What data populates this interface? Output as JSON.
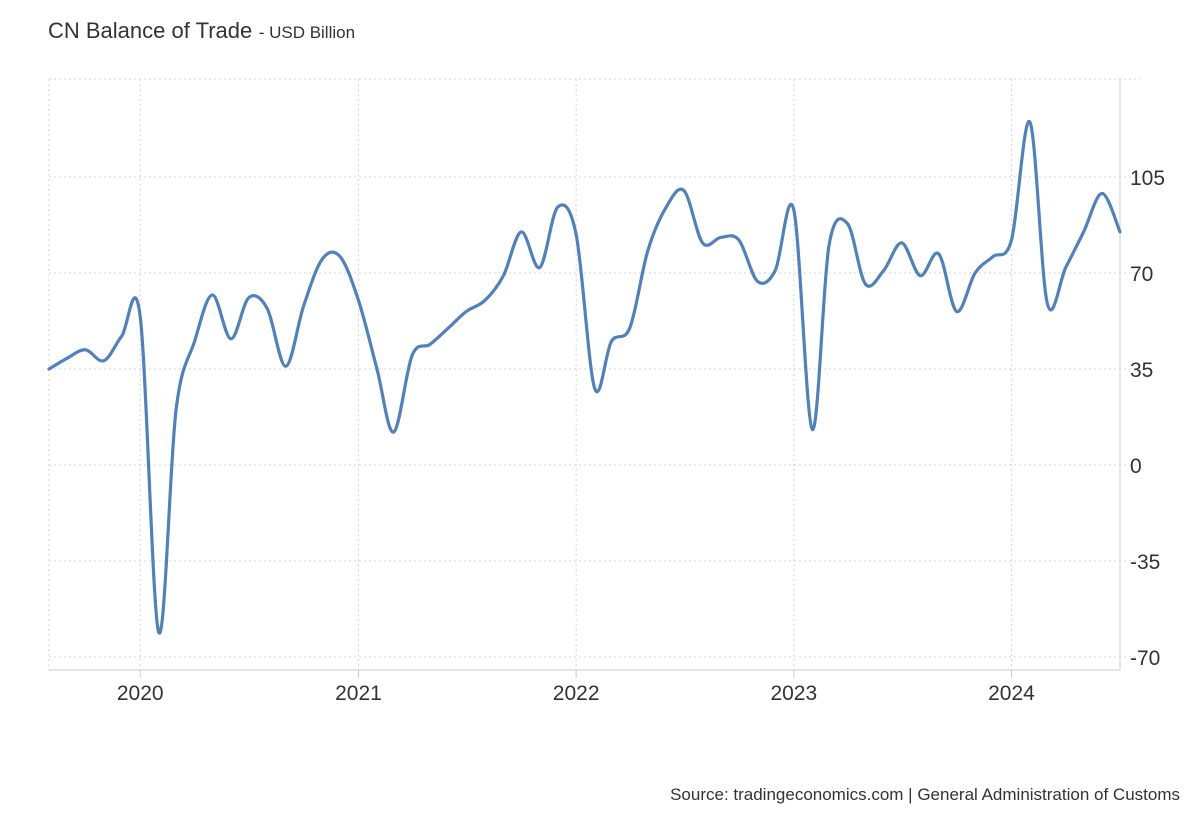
{
  "header": {
    "title": "CN Balance of Trade",
    "subtitle": "- USD Billion"
  },
  "footer": {
    "source": "Source: tradingeconomics.com | General Administration of Customs"
  },
  "colors": {
    "line": "#4f81bd",
    "grid": "#d6d6d6",
    "axis": "#cccccc",
    "text": "#333333"
  },
  "chart_data": {
    "type": "line",
    "title": "CN Balance of Trade",
    "subtitle": "USD Billion",
    "xlabel": "",
    "ylabel": "",
    "grid": true,
    "y_axis_side": "right",
    "xlim": [
      "2019-08-01",
      "2024-07-01"
    ],
    "ylim": [
      -75,
      140
    ],
    "yticks": [
      -70,
      -35,
      0,
      35,
      70,
      105
    ],
    "xticks": [
      {
        "label": "2020",
        "date": "2020-01-01"
      },
      {
        "label": "2021",
        "date": "2021-01-01"
      },
      {
        "label": "2022",
        "date": "2022-01-01"
      },
      {
        "label": "2023",
        "date": "2023-01-01"
      },
      {
        "label": "2024",
        "date": "2024-01-01"
      }
    ],
    "series": [
      {
        "name": "",
        "x": [
          "2019-08-01",
          "2019-09-01",
          "2019-10-01",
          "2019-11-01",
          "2019-12-01",
          "2020-01-01",
          "2020-02-01",
          "2020-03-01",
          "2020-04-01",
          "2020-05-01",
          "2020-06-01",
          "2020-07-01",
          "2020-08-01",
          "2020-09-01",
          "2020-10-01",
          "2020-11-01",
          "2020-12-01",
          "2021-01-01",
          "2021-02-01",
          "2021-03-01",
          "2021-04-01",
          "2021-05-01",
          "2021-06-01",
          "2021-07-01",
          "2021-08-01",
          "2021-09-01",
          "2021-10-01",
          "2021-11-01",
          "2021-12-01",
          "2022-01-01",
          "2022-02-01",
          "2022-03-01",
          "2022-04-01",
          "2022-05-01",
          "2022-06-01",
          "2022-07-01",
          "2022-08-01",
          "2022-09-01",
          "2022-10-01",
          "2022-11-01",
          "2022-12-01",
          "2023-01-01",
          "2023-02-01",
          "2023-03-01",
          "2023-04-01",
          "2023-05-01",
          "2023-06-01",
          "2023-07-01",
          "2023-08-01",
          "2023-09-01",
          "2023-10-01",
          "2023-11-01",
          "2023-12-01",
          "2024-01-01",
          "2024-02-01",
          "2024-03-01",
          "2024-04-01",
          "2024-05-01",
          "2024-06-01",
          "2024-07-01"
        ],
        "values": [
          35,
          39,
          42,
          38,
          47,
          54,
          -61,
          20,
          45,
          62,
          46,
          61,
          57,
          36,
          58,
          75,
          76,
          60,
          35,
          12,
          40,
          44,
          50,
          56,
          60,
          69,
          85,
          72,
          94,
          84,
          28,
          45,
          50,
          78,
          94,
          100,
          81,
          83,
          82,
          67,
          71,
          93,
          13,
          80,
          88,
          66,
          71,
          81,
          69,
          77,
          56,
          70,
          76,
          82,
          125,
          59,
          72,
          85,
          99,
          85
        ]
      }
    ]
  }
}
